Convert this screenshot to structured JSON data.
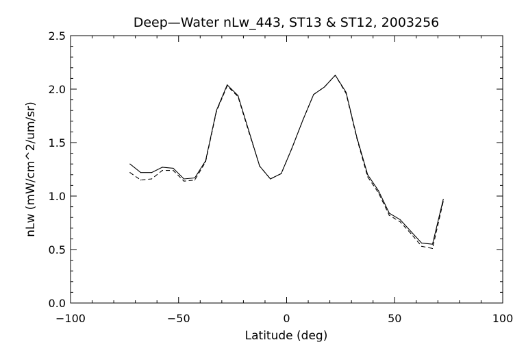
{
  "chart_data": {
    "type": "line",
    "title": "Deep—Water nLw_443, ST13 & ST12, 2003256",
    "xlabel": "Latitude (deg)",
    "ylabel": "nLw (mW/cm^2/um/sr)",
    "xlim": [
      -100,
      100
    ],
    "ylim": [
      0.0,
      2.5
    ],
    "xticks": [
      -100,
      -50,
      0,
      50,
      100
    ],
    "xtick_labels": [
      "−100",
      "−50",
      "0",
      "50",
      "100"
    ],
    "yticks": [
      0.0,
      0.5,
      1.0,
      1.5,
      2.0,
      2.5
    ],
    "ytick_labels": [
      "0.0",
      "0.5",
      "1.0",
      "1.5",
      "2.0",
      "2.5"
    ],
    "grid": false,
    "series": [
      {
        "style": "solid",
        "color": "#000000",
        "x": [
          -72.5,
          -67.5,
          -62.5,
          -57.5,
          -52.5,
          -47.5,
          -42.5,
          -37.5,
          -32.5,
          -27.5,
          -22.5,
          -17.5,
          -12.5,
          -7.5,
          -2.5,
          2.5,
          7.5,
          12.5,
          17.5,
          22.5,
          27.5,
          32.5,
          37.5,
          42.5,
          47.5,
          52.5,
          57.5,
          62.5,
          67.5,
          72.5
        ],
        "y": [
          1.3,
          1.22,
          1.22,
          1.27,
          1.26,
          1.16,
          1.17,
          1.33,
          1.8,
          2.04,
          1.94,
          1.61,
          1.28,
          1.16,
          1.21,
          1.45,
          1.71,
          1.95,
          2.02,
          2.13,
          1.97,
          1.55,
          1.2,
          1.05,
          0.84,
          0.78,
          0.67,
          0.56,
          0.55,
          0.97
        ]
      },
      {
        "style": "dashed",
        "color": "#000000",
        "x": [
          -72.5,
          -67.5,
          -62.5,
          -57.5,
          -52.5,
          -47.5,
          -42.5,
          -37.5,
          -32.5,
          -27.5,
          -22.5,
          -17.5,
          -12.5,
          -7.5,
          -2.5,
          2.5,
          7.5,
          12.5,
          17.5,
          22.5,
          27.5,
          32.5,
          37.5,
          42.5,
          47.5,
          52.5,
          57.5,
          62.5,
          67.5,
          72.5
        ],
        "y": [
          1.22,
          1.15,
          1.16,
          1.24,
          1.24,
          1.14,
          1.15,
          1.32,
          1.79,
          2.03,
          1.93,
          1.6,
          1.28,
          1.16,
          1.21,
          1.45,
          1.71,
          1.95,
          2.02,
          2.13,
          1.96,
          1.54,
          1.18,
          1.03,
          0.82,
          0.76,
          0.65,
          0.53,
          0.51,
          0.95
        ]
      }
    ]
  }
}
